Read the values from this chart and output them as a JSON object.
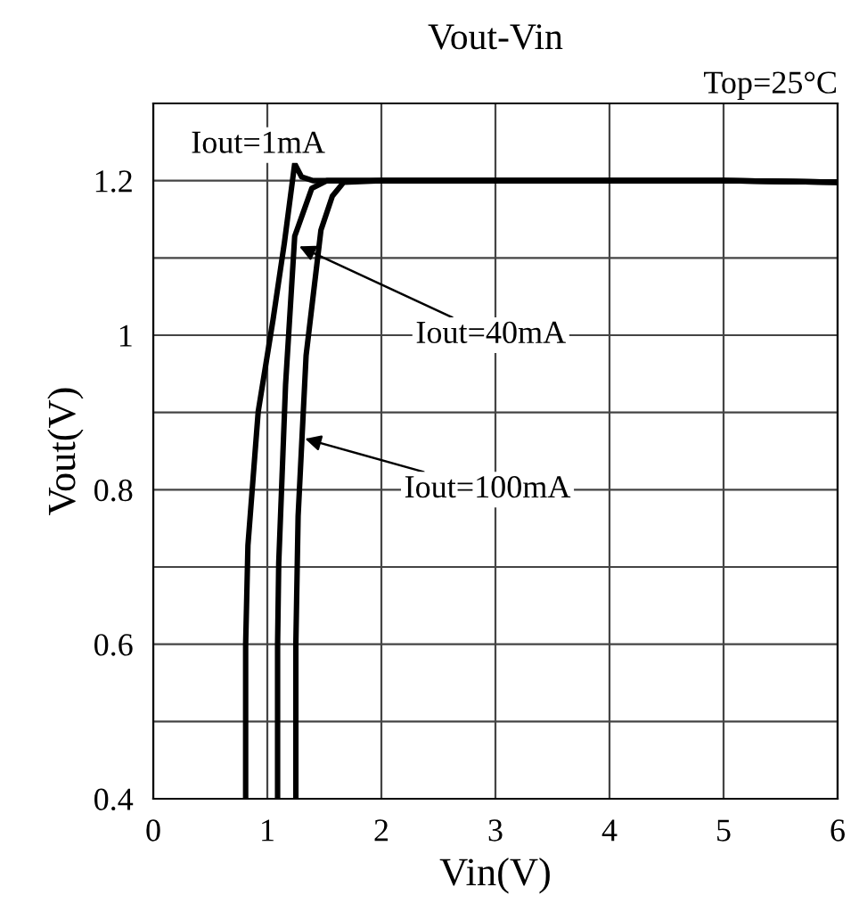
{
  "chart_data": {
    "type": "line",
    "title": "Vout-Vin",
    "xlabel": "Vin(V)",
    "ylabel": "Vout(V)",
    "xlim": [
      0,
      6
    ],
    "ylim": [
      0.4,
      1.3
    ],
    "xticks": [
      0,
      1,
      2,
      3,
      4,
      5,
      6
    ],
    "yticks": [
      0.4,
      {
        "value": 0.5,
        "label": null
      },
      0.6,
      {
        "value": 0.7,
        "label": null
      },
      0.8,
      {
        "value": 0.9,
        "label": null
      },
      1,
      {
        "value": 1.1,
        "label": null
      },
      1.2,
      {
        "value": 1.3,
        "label": null
      }
    ],
    "grid": true,
    "marker": "none",
    "line_style": "solid",
    "series": [
      {
        "color": "#000000",
        "x": [
          0.81,
          0.81,
          0.83,
          0.92,
          1.05,
          1.15,
          1.24,
          1.3,
          1.4,
          2,
          3,
          4,
          5,
          6
        ],
        "values": [
          0.4,
          0.6,
          0.728,
          0.901,
          1.02,
          1.12,
          1.222,
          1.205,
          1.2,
          1.2,
          1.2,
          1.2,
          1.2,
          1.198
        ]
      },
      {
        "color": "#000000",
        "x": [
          1.09,
          1.09,
          1.1,
          1.16,
          1.24,
          1.39,
          1.52,
          2,
          3,
          4,
          5,
          6
        ],
        "values": [
          0.4,
          0.6,
          0.705,
          0.936,
          1.128,
          1.19,
          1.2,
          1.2,
          1.2,
          1.2,
          1.2,
          1.198
        ]
      },
      {
        "color": "#000000",
        "x": [
          1.25,
          1.25,
          1.27,
          1.34,
          1.47,
          1.57,
          1.67,
          2,
          3,
          4,
          5,
          6
        ],
        "values": [
          0.4,
          0.6,
          0.766,
          0.974,
          1.136,
          1.18,
          1.198,
          1.2,
          1.2,
          1.2,
          1.2,
          1.198
        ]
      }
    ],
    "annotations": [
      "Iout=1mA",
      {
        "text": "Iout=40mA",
        "x": 1.28,
        "y": 1.115
      },
      {
        "text": "Iout=100mA",
        "x": 1.33,
        "y": 0.866
      },
      "Top=25°C"
    ]
  }
}
